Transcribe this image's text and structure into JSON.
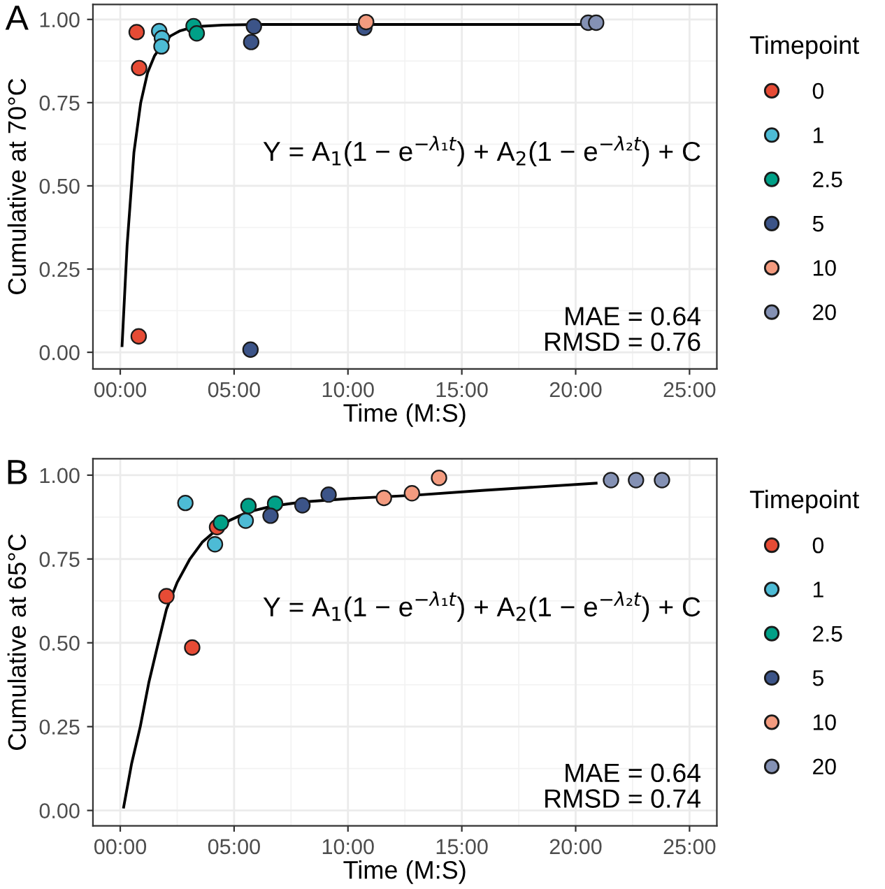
{
  "chart_data": [
    {
      "type": "scatter",
      "title": "A",
      "xlabel": "Time (M:S)",
      "ylabel": "Cumulative at 70°C",
      "legend_title": "Timepoint",
      "legend": "right",
      "grid": true,
      "marker": "circle",
      "xlim": [
        -1.2,
        26.2
      ],
      "ylim": [
        -0.05,
        1.045
      ],
      "xticks": [
        {
          "value": 0,
          "label": "00:00"
        },
        {
          "value": 5,
          "label": "05:00"
        },
        {
          "value": 10,
          "label": "10:00"
        },
        {
          "value": 15,
          "label": "15:00"
        },
        {
          "value": 20,
          "label": "20:00"
        },
        {
          "value": 25,
          "label": "25:00"
        }
      ],
      "yticks": [
        {
          "value": 0,
          "label": "0.00"
        },
        {
          "value": 0.25,
          "label": "0.25"
        },
        {
          "value": 0.5,
          "label": "0.50"
        },
        {
          "value": 0.75,
          "label": "0.75"
        },
        {
          "value": 1,
          "label": "1.00"
        }
      ],
      "annotations": [
        "Y = A$_{1}$(1 − e$^{−λ₁t}$) + A$_{2}$(1 − e$^{−λ₂t}$) + C",
        "MAE = 0.64",
        "RMSD = 0.76"
      ],
      "series": [
        {
          "type": "line",
          "marker": "none",
          "color": "#000000",
          "x": [
            0.08,
            0.3,
            0.6,
            0.9,
            1.2,
            1.5,
            1.8,
            2.2,
            2.6,
            3.0,
            3.5,
            4.5,
            6,
            10,
            15,
            20.8
          ],
          "values": [
            0.02,
            0.32,
            0.6,
            0.75,
            0.84,
            0.89,
            0.92,
            0.95,
            0.965,
            0.973,
            0.979,
            0.983,
            0.985,
            0.985,
            0.985,
            0.985
          ]
        },
        {
          "name": "0",
          "color": "#e64b35",
          "x": [
            0.72,
            0.83,
            0.81
          ],
          "values": [
            0.962,
            0.854,
            0.048
          ]
        },
        {
          "name": "1",
          "color": "#4dbbd5",
          "x": [
            1.71,
            1.83,
            1.81
          ],
          "values": [
            0.965,
            0.944,
            0.919
          ]
        },
        {
          "name": "2.5",
          "color": "#00a087",
          "x": [
            3.22,
            3.36
          ],
          "values": [
            0.98,
            0.958
          ]
        },
        {
          "name": "5",
          "color": "#3c5488",
          "x": [
            5.87,
            5.75,
            5.72,
            10.72
          ],
          "values": [
            0.979,
            0.932,
            0.008,
            0.975
          ]
        },
        {
          "name": "10",
          "color": "#f39b7f",
          "x": [
            10.8
          ],
          "values": [
            0.992
          ]
        },
        {
          "name": "20",
          "color": "#8491b4",
          "x": [
            20.55,
            20.9
          ],
          "values": [
            0.99,
            0.99
          ]
        }
      ]
    },
    {
      "type": "scatter",
      "title": "B",
      "xlabel": "Time (M:S)",
      "ylabel": "Cumulative at 65°C",
      "legend_title": "Timepoint",
      "legend": "right",
      "grid": true,
      "marker": "circle",
      "xlim": [
        -1.2,
        26.2
      ],
      "ylim": [
        -0.046,
        1.049
      ],
      "xticks": [
        {
          "value": 0,
          "label": "00:00"
        },
        {
          "value": 5,
          "label": "05:00"
        },
        {
          "value": 10,
          "label": "10:00"
        },
        {
          "value": 15,
          "label": "15:00"
        },
        {
          "value": 20,
          "label": "20:00"
        },
        {
          "value": 25,
          "label": "25:00"
        }
      ],
      "yticks": [
        {
          "value": 0,
          "label": "0.00"
        },
        {
          "value": 0.25,
          "label": "0.25"
        },
        {
          "value": 0.5,
          "label": "0.50"
        },
        {
          "value": 0.75,
          "label": "0.75"
        },
        {
          "value": 1,
          "label": "1.00"
        }
      ],
      "annotations": [
        "Y = A$_{1}$(1 − e$^{−λ₁t}$) + A$_{2}$(1 − e$^{−λ₂t}$) + C",
        "MAE = 0.64",
        "RMSD = 0.74"
      ],
      "series": [
        {
          "type": "line",
          "marker": "none",
          "color": "#000000",
          "x": [
            0.15,
            0.5,
            0.88,
            1.25,
            1.67,
            2.03,
            2.5,
            3.06,
            3.6,
            4.16,
            4.8,
            5.6,
            6.7,
            8,
            10,
            12.9,
            16,
            20.9
          ],
          "values": [
            0.01,
            0.14,
            0.25,
            0.38,
            0.5,
            0.6,
            0.68,
            0.75,
            0.8,
            0.833,
            0.865,
            0.89,
            0.908,
            0.92,
            0.93,
            0.94,
            0.955,
            0.976
          ]
        },
        {
          "name": "0",
          "color": "#e64b35",
          "x": [
            2.03,
            3.16,
            4.25
          ],
          "values": [
            0.639,
            0.486,
            0.845
          ]
        },
        {
          "name": "1",
          "color": "#4dbbd5",
          "x": [
            2.86,
            4.16,
            5.51
          ],
          "values": [
            0.917,
            0.794,
            0.864
          ]
        },
        {
          "name": "2.5",
          "color": "#00a087",
          "x": [
            4.42,
            5.63,
            6.8
          ],
          "values": [
            0.858,
            0.908,
            0.915
          ]
        },
        {
          "name": "5",
          "color": "#3c5488",
          "x": [
            6.6,
            8.0,
            9.15
          ],
          "values": [
            0.879,
            0.91,
            0.942
          ]
        },
        {
          "name": "10",
          "color": "#f39b7f",
          "x": [
            11.58,
            12.81,
            14.0
          ],
          "values": [
            0.932,
            0.946,
            0.992
          ]
        },
        {
          "name": "20",
          "color": "#8491b4",
          "x": [
            21.55,
            22.65,
            23.79
          ],
          "values": [
            0.985,
            0.985,
            0.985
          ]
        }
      ]
    }
  ]
}
